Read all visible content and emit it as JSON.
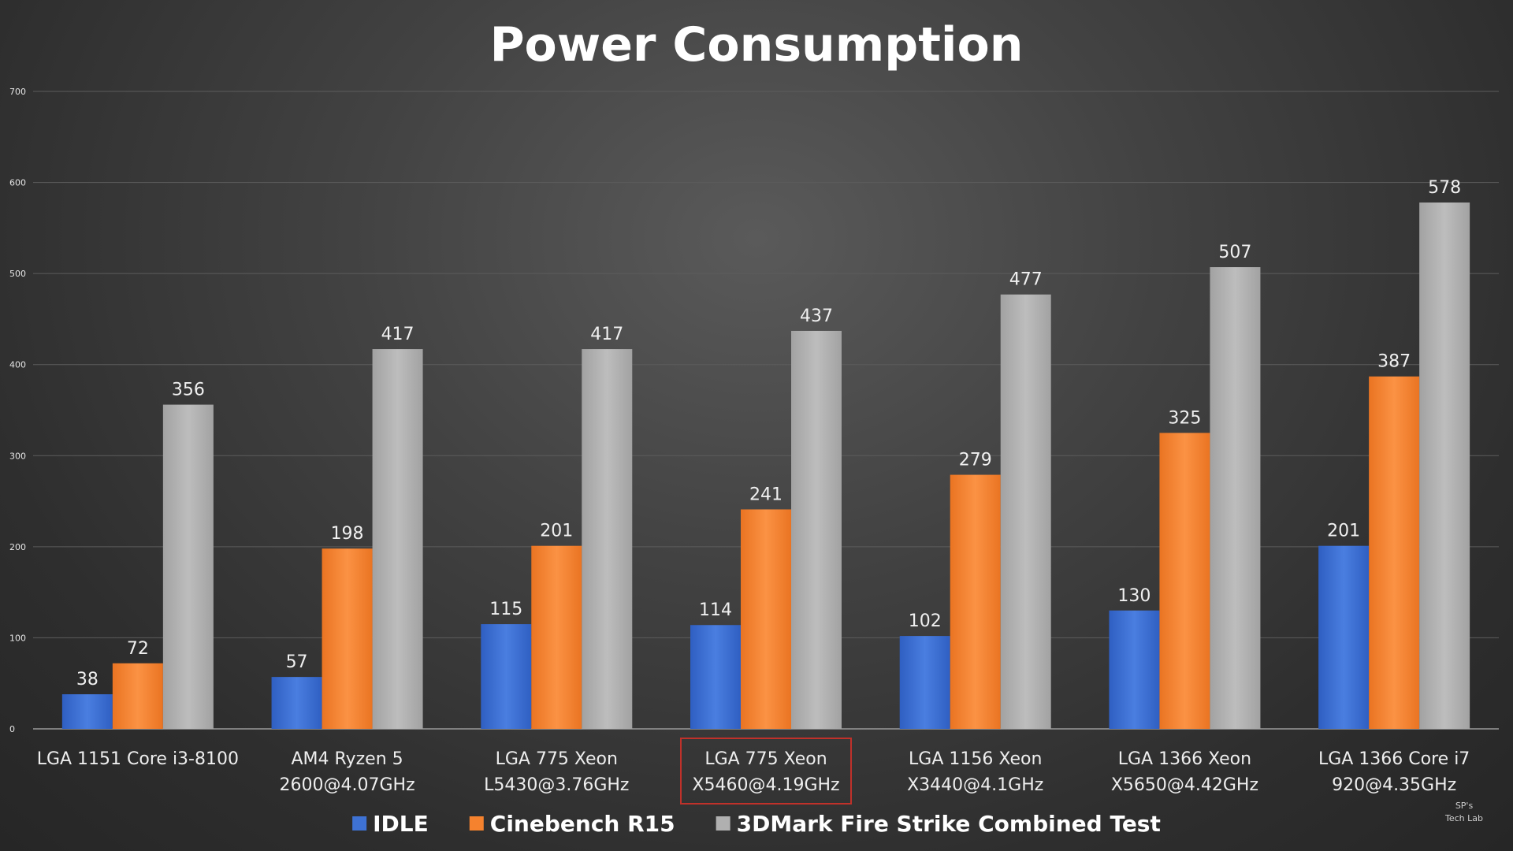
{
  "chart_data": {
    "type": "bar",
    "title": "Power Consumption",
    "xlabel": "",
    "ylabel": "",
    "ylim": [
      0,
      700
    ],
    "yticks": [
      0,
      100,
      200,
      300,
      400,
      500,
      600,
      700
    ],
    "grid": true,
    "legend_position": "bottom",
    "categories": [
      [
        "LGA 1151 Core i3-8100"
      ],
      [
        "AM4 Ryzen 5",
        "2600@4.07GHz"
      ],
      [
        "LGA 775 Xeon",
        "L5430@3.76GHz"
      ],
      [
        "LGA 775 Xeon",
        "X5460@4.19GHz"
      ],
      [
        "LGA 1156 Xeon",
        "X3440@4.1GHz"
      ],
      [
        "LGA 1366 Xeon",
        "X5650@4.42GHz"
      ],
      [
        "LGA 1366 Core i7",
        "920@4.35GHz"
      ]
    ],
    "highlighted_category_index": 3,
    "series": [
      {
        "name": "IDLE",
        "color": "#3e72d4",
        "values": [
          38,
          57,
          115,
          114,
          102,
          130,
          201
        ]
      },
      {
        "name": "Cinebench R15",
        "color": "#f5822e",
        "values": [
          72,
          198,
          201,
          241,
          279,
          325,
          387
        ]
      },
      {
        "name": "3DMark Fire Strike Combined Test",
        "color": "#b0b0b0",
        "values": [
          356,
          417,
          417,
          437,
          477,
          507,
          578
        ]
      }
    ],
    "highlight_color": "#c0312a"
  },
  "watermark": [
    "SP's",
    "Tech Lab"
  ]
}
